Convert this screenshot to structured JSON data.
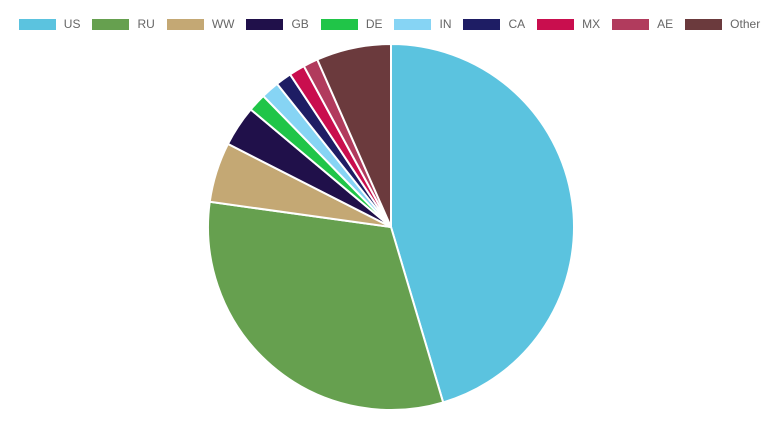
{
  "chart_data": {
    "type": "pie",
    "start_angle_deg": 0,
    "direction": "clockwise",
    "legend_position": "top",
    "title": "",
    "slices": [
      {
        "label": "US",
        "value": 45.4,
        "color": "#5bc3df"
      },
      {
        "label": "RU",
        "value": 31.8,
        "color": "#66a04f"
      },
      {
        "label": "WW",
        "value": 5.3,
        "color": "#c4a874"
      },
      {
        "label": "GB",
        "value": 3.6,
        "color": "#20104a"
      },
      {
        "label": "DE",
        "value": 1.6,
        "color": "#20c548"
      },
      {
        "label": "IN",
        "value": 1.6,
        "color": "#86d4f4"
      },
      {
        "label": "CA",
        "value": 1.4,
        "color": "#1e1d64"
      },
      {
        "label": "MX",
        "value": 1.4,
        "color": "#c90e4e"
      },
      {
        "label": "AE",
        "value": 1.3,
        "color": "#b13b5d"
      },
      {
        "label": "Other",
        "value": 6.6,
        "color": "#6b3a3d"
      }
    ]
  }
}
